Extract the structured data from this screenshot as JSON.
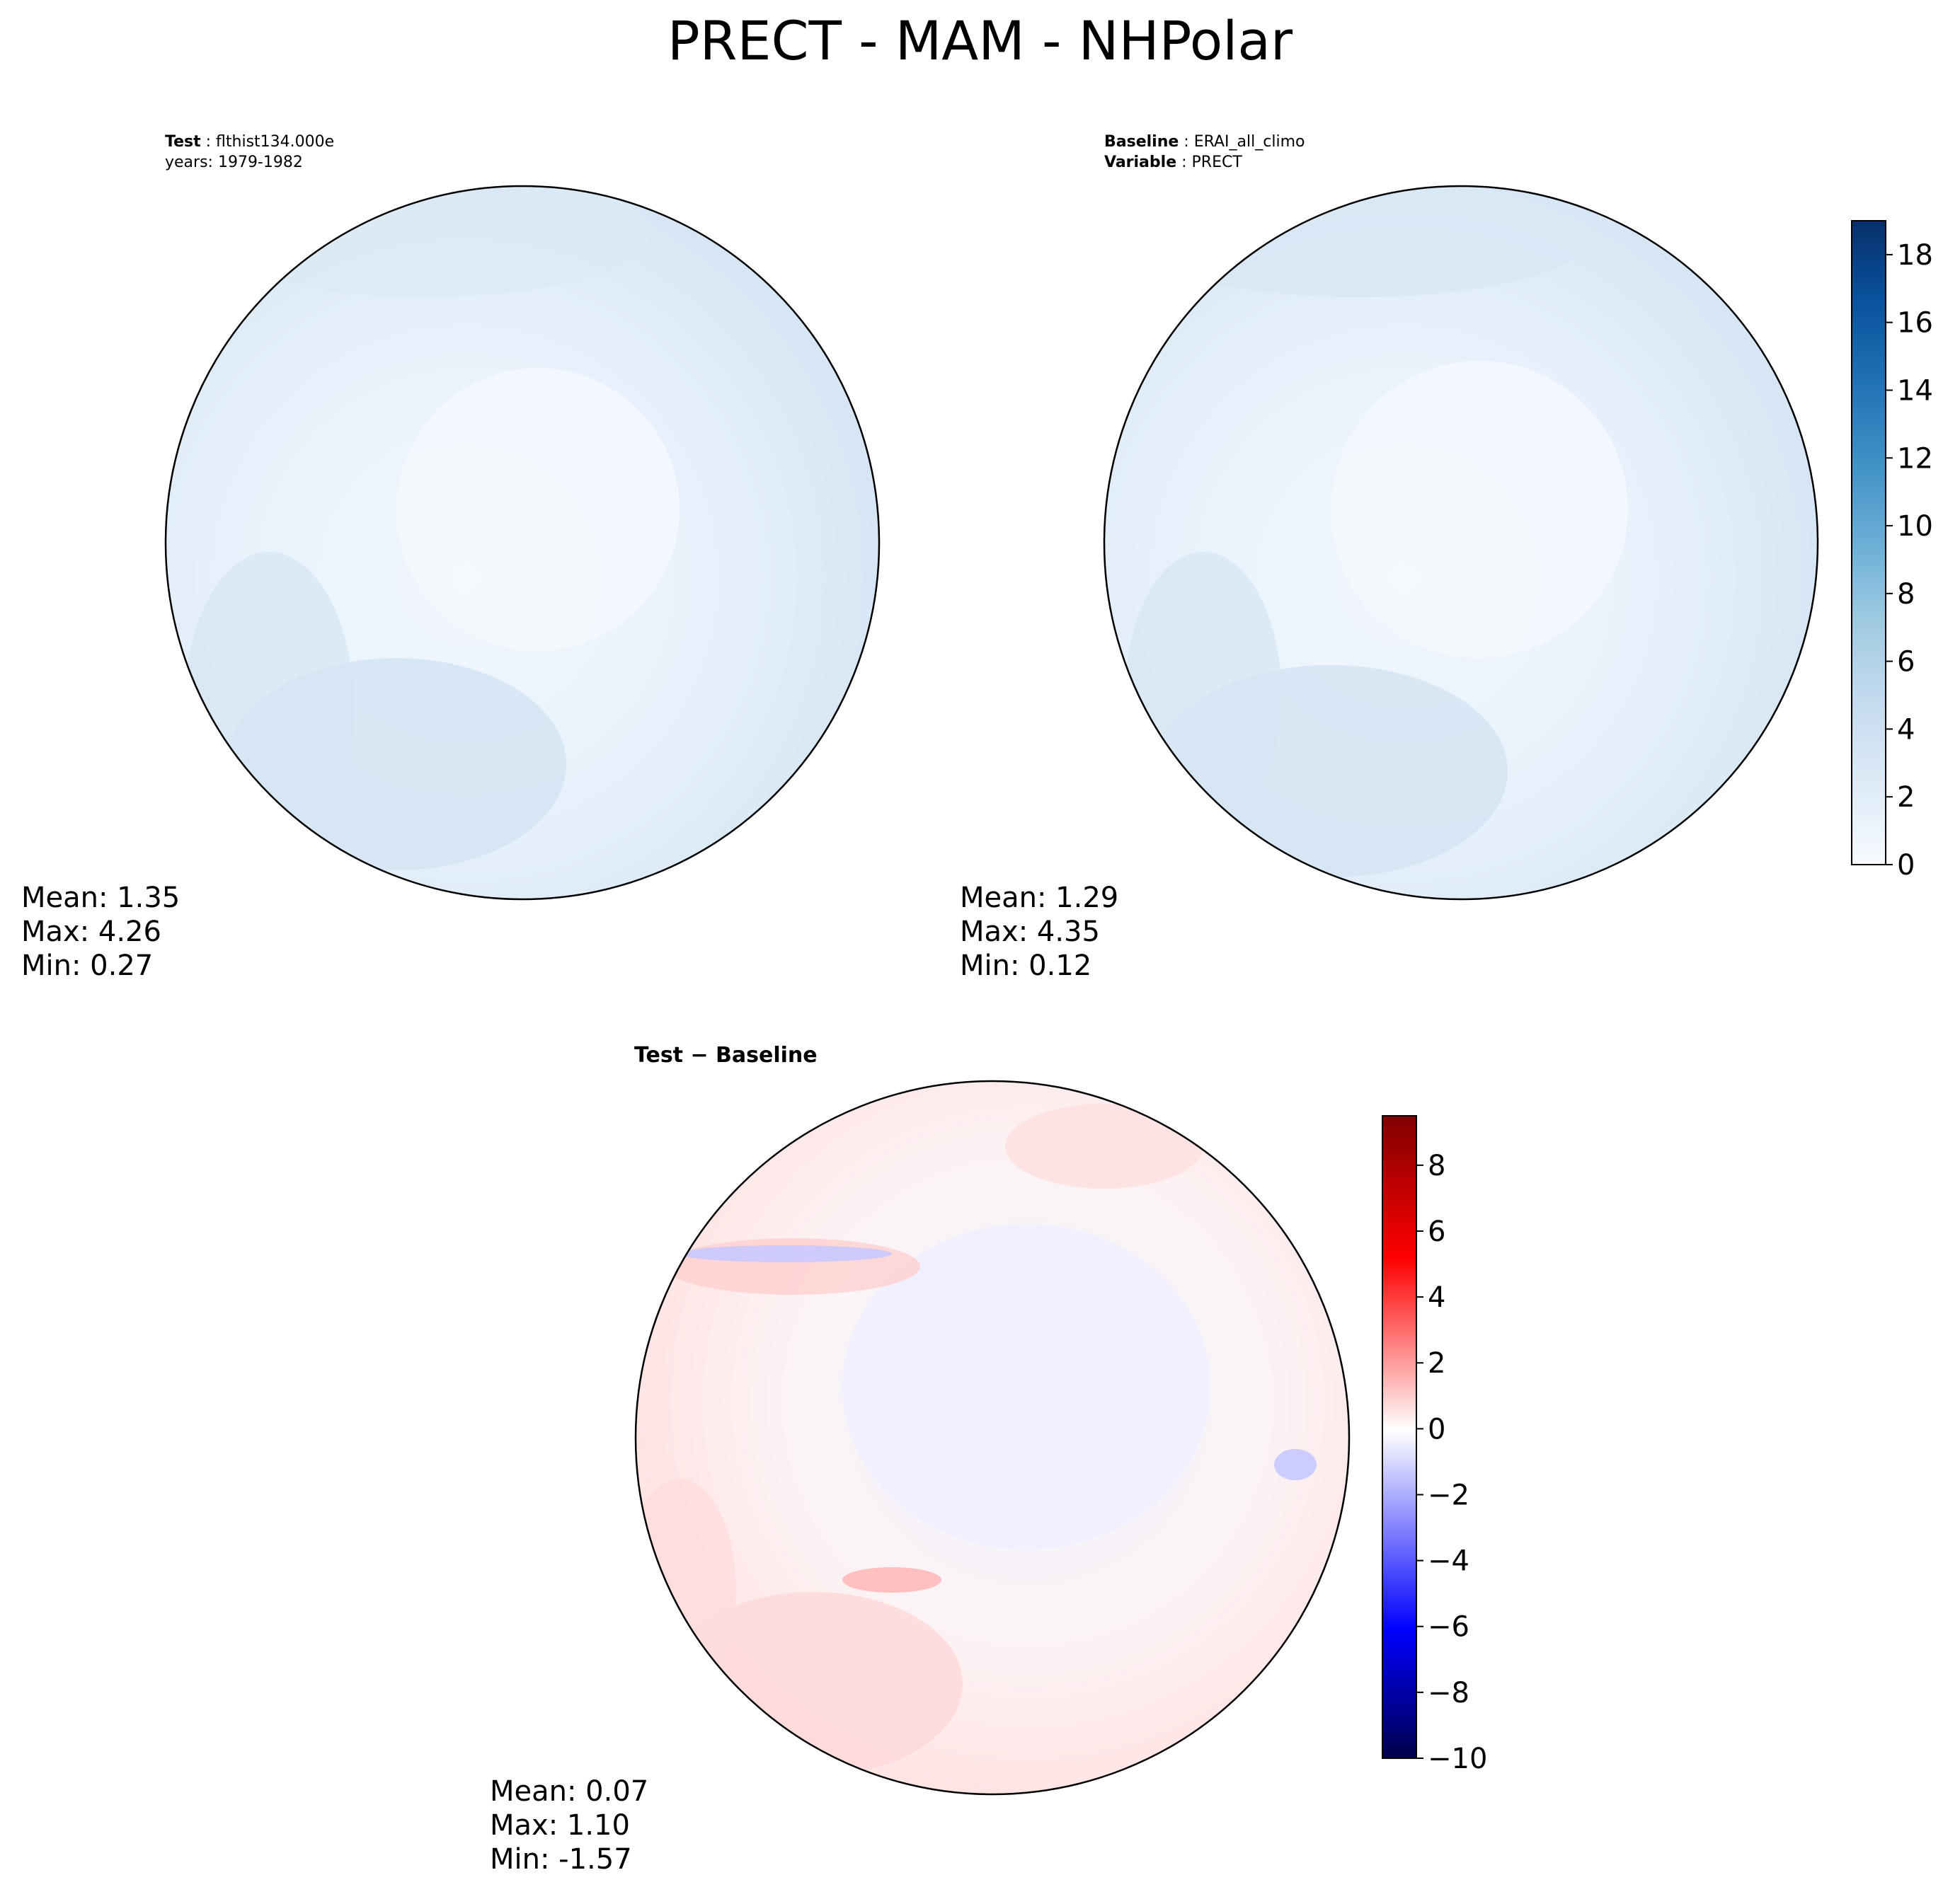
{
  "figure": {
    "title": "PRECT - MAM - NHPolar"
  },
  "test_panel": {
    "label_key": "Test",
    "label_value": "flthist134.000e",
    "years_line": "years: 1979-1982",
    "stats": {
      "mean": "Mean:  1.35",
      "max": "Max:  4.26",
      "min": "Min:  0.27"
    }
  },
  "baseline_panel": {
    "label_key": "Baseline",
    "label_value": "ERAI_all_climo",
    "variable_key": "Variable",
    "variable_value": "PRECT",
    "stats": {
      "mean": "Mean:  1.29",
      "max": "Max:  4.35",
      "min": "Min:  0.12"
    }
  },
  "diff_panel": {
    "title": "Test − Baseline",
    "stats": {
      "mean": "Mean:  0.07",
      "max": "Max:  1.10",
      "min": "Min: -1.57"
    }
  },
  "colorbars": {
    "main": {
      "min": 0,
      "max": 19,
      "ticks": [
        "0",
        "2",
        "4",
        "6",
        "8",
        "10",
        "12",
        "14",
        "16",
        "18"
      ],
      "colors": [
        "#f7fbff",
        "#deebf7",
        "#c6dbef",
        "#9ecae1",
        "#6baed6",
        "#4292c6",
        "#2171b5",
        "#08519c",
        "#08306b"
      ]
    },
    "diff": {
      "min": -10,
      "max": 9.5,
      "ticks": [
        "−10",
        "−8",
        "−6",
        "−4",
        "−2",
        "0",
        "2",
        "4",
        "6",
        "8"
      ],
      "colors": [
        "#00004c",
        "#0000ff",
        "#ffffff",
        "#ff0000",
        "#800000"
      ]
    }
  },
  "chart_data": [
    {
      "type": "heatmap",
      "title": "Test: flthist134.000e",
      "subtitle": "years: 1979-1982",
      "projection": "North polar stereographic",
      "stats": {
        "mean": 1.35,
        "max": 4.26,
        "min": 0.27
      },
      "colorbar_range": [
        0,
        19
      ]
    },
    {
      "type": "heatmap",
      "title": "Baseline: ERAI_all_climo",
      "subtitle": "Variable: PRECT",
      "projection": "North polar stereographic",
      "stats": {
        "mean": 1.29,
        "max": 4.35,
        "min": 0.12
      },
      "colorbar_range": [
        0,
        19
      ]
    },
    {
      "type": "heatmap",
      "title": "Test − Baseline",
      "projection": "North polar stereographic",
      "stats": {
        "mean": 0.07,
        "max": 1.1,
        "min": -1.57
      },
      "colorbar_range": [
        -10,
        9.5
      ]
    }
  ]
}
